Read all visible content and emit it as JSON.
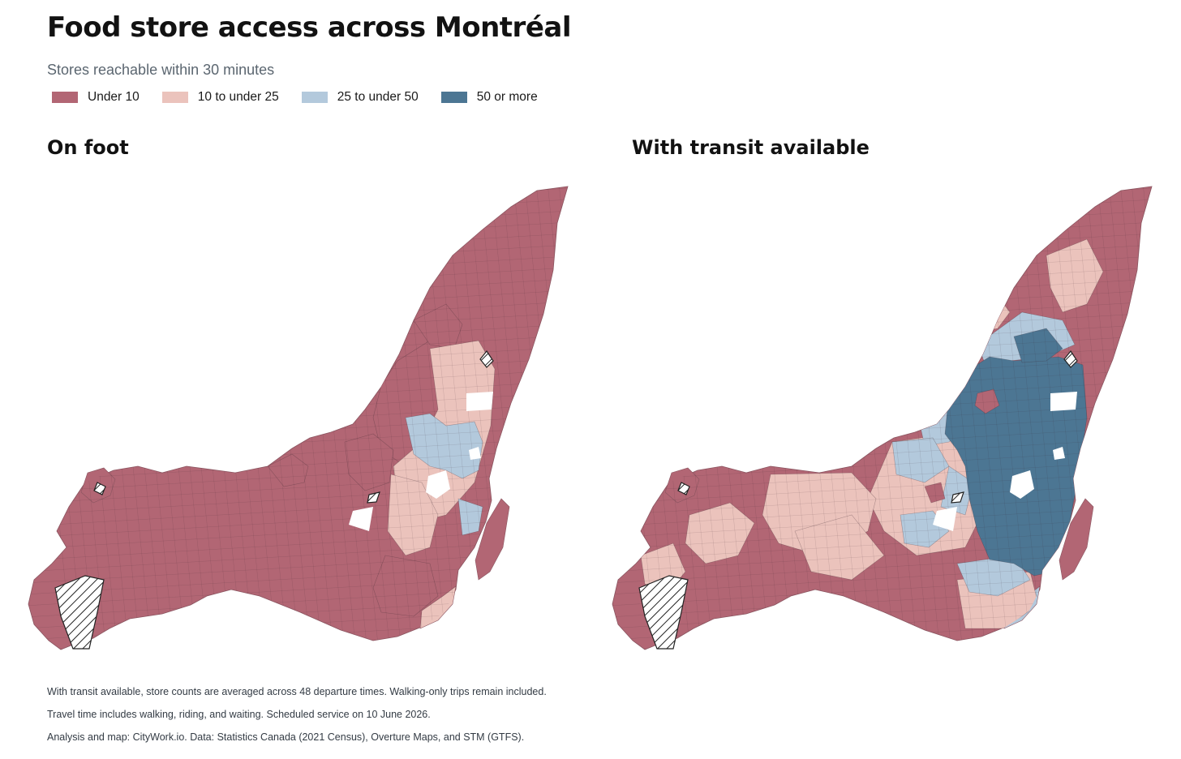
{
  "title": "Food store access across Montréal",
  "subtitle": "Stores reachable within 30 minutes",
  "legend": [
    {
      "label": "Under 10",
      "color": "#b26674"
    },
    {
      "label": "10 to under 25",
      "color": "#ebc3bc"
    },
    {
      "label": "25 to under 50",
      "color": "#b3c9dc"
    },
    {
      "label": "50 or more",
      "color": "#4c7693"
    }
  ],
  "panels": [
    {
      "title": "On foot",
      "mode": "walk"
    },
    {
      "title": "With transit available",
      "mode": "transit"
    }
  ],
  "no_data_pattern": "hatched",
  "notes": [
    "With transit available, store counts are averaged across 48 departure times. Walking-only trips remain included.",
    "Travel time includes walking, riding, and waiting. Scheduled service on 10 June 2026.",
    "Analysis and map: CityWork.io. Data: Statistics Canada (2021 Census), Overture Maps, and STM (GTFS)."
  ]
}
